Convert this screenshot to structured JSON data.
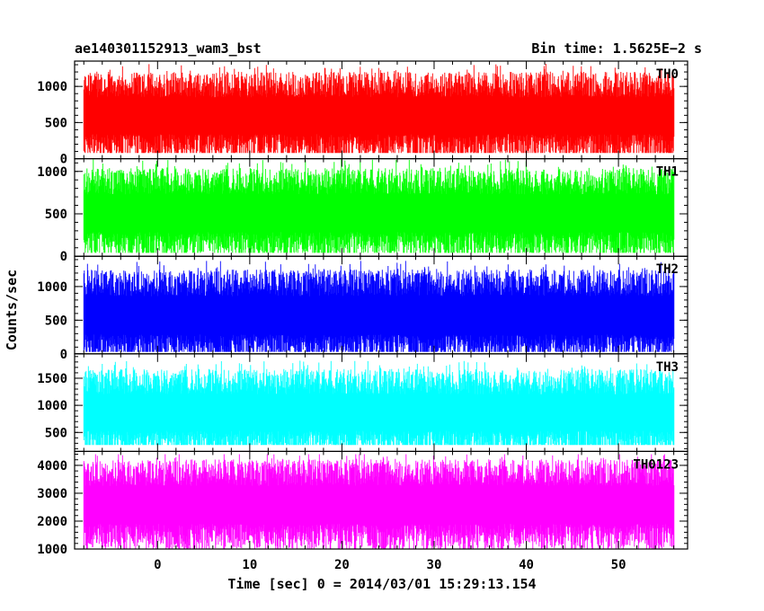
{
  "header": {
    "left_title": "ae140301152913_wam3_bst",
    "right_title": "Bin time: 1.5625E−2 s"
  },
  "chart_data": {
    "type": "line",
    "title": "ae140301152913_wam3_bst",
    "subtitle": "Bin time: 1.5625E−2 s",
    "xlabel": "Time [sec] 0 = 2014/03/01 15:29:13.154",
    "ylabel": "Counts/sec",
    "bin_time_s": 0.015625,
    "xlim": [
      -9,
      57.5
    ],
    "x_ticks": [
      0,
      10,
      20,
      30,
      40,
      50
    ],
    "x_range_data": [
      -8,
      56
    ],
    "grid": false,
    "legend": "none",
    "panels": [
      {
        "name": "TH0",
        "color": "#ff0000",
        "ylim": [
          0,
          1350
        ],
        "y_ticks": [
          0,
          500,
          1000
        ],
        "mean": 620,
        "min": 80,
        "max": 1350
      },
      {
        "name": "TH1",
        "color": "#00ff00",
        "ylim": [
          0,
          1150
        ],
        "y_ticks": [
          0,
          500,
          1000
        ],
        "mean": 530,
        "min": 40,
        "max": 1150
      },
      {
        "name": "TH2",
        "color": "#0000ff",
        "ylim": [
          0,
          1450
        ],
        "y_ticks": [
          0,
          500,
          1000
        ],
        "mean": 600,
        "min": 30,
        "max": 1450
      },
      {
        "name": "TH3",
        "color": "#00ffff",
        "ylim": [
          150,
          1950
        ],
        "y_ticks": [
          500,
          1000,
          1500
        ],
        "mean": 900,
        "min": 270,
        "max": 1950
      },
      {
        "name": "TH0123",
        "color": "#ff00ff",
        "ylim": [
          1000,
          4500
        ],
        "y_ticks": [
          1000,
          2000,
          3000,
          4000
        ],
        "mean": 2650,
        "min": 1000,
        "max": 4400
      }
    ]
  }
}
